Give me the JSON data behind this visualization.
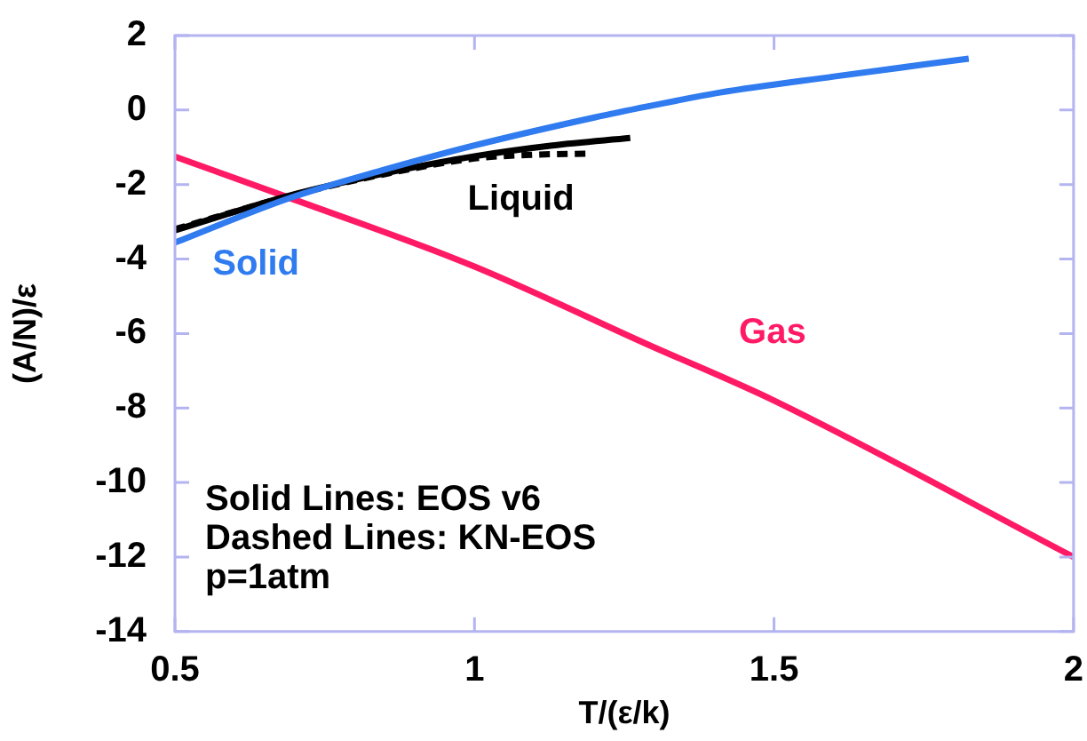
{
  "chart_data": {
    "type": "line",
    "xlabel": "T/(ε/k)",
    "ylabel": "(A/N)/ε",
    "xlim": [
      0.5,
      2
    ],
    "xticks": [
      0.5,
      1,
      1.5,
      2
    ],
    "ylim": [
      -14,
      2
    ],
    "yticks": [
      -14,
      -12,
      -10,
      -8,
      -6,
      -4,
      -2,
      0,
      2
    ],
    "grid": false,
    "legend": false,
    "marker": "none",
    "series": [
      {
        "name": "Solid",
        "color": "#2f7bef",
        "x": [
          0.5,
          0.69,
          0.85,
          1.0,
          1.2,
          1.29,
          1.41,
          1.6,
          1.825
        ],
        "values": [
          -3.56,
          -2.37,
          -1.6,
          -0.95,
          -0.2,
          0.1,
          0.47,
          0.9,
          1.38
        ],
        "line_style": "solid"
      },
      {
        "name": "Liquid",
        "color": "#000000",
        "x": [
          0.5,
          0.69,
          0.85,
          1.0,
          1.13,
          1.26
        ],
        "values": [
          -3.23,
          -2.3,
          -1.7,
          -1.24,
          -0.95,
          -0.75
        ],
        "line_style": "solid"
      },
      {
        "color": "#000000",
        "x": [
          0.5,
          0.7,
          0.85,
          1.0,
          1.1,
          1.19
        ],
        "values": [
          -3.2,
          -2.27,
          -1.72,
          -1.3,
          -1.2,
          -1.17
        ],
        "line_style": "dashed"
      },
      {
        "name": "Gas",
        "color": "#ff1a66",
        "x": [
          0.5,
          0.69,
          1.0,
          1.29,
          1.5,
          2.0
        ],
        "values": [
          -1.25,
          -2.35,
          -4.2,
          -6.3,
          -7.8,
          -12.0
        ],
        "line_style": "solid"
      }
    ],
    "annotations": [
      "Solid Lines: EOS v6",
      "Dashed Lines: KN-EOS",
      "p=1atm"
    ]
  }
}
